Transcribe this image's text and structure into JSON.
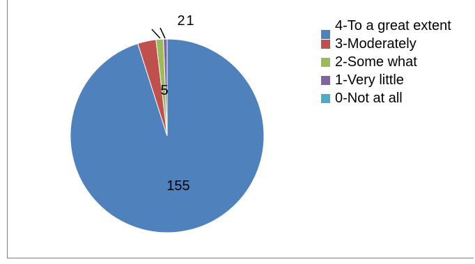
{
  "chart_data": {
    "type": "pie",
    "categories": [
      "4-To a great extent",
      "3-Moderately",
      "2-Some what",
      "1-Very little",
      "0-Not at all"
    ],
    "values": [
      155,
      5,
      2,
      1,
      0
    ],
    "data_labels": [
      "155",
      "5",
      "2",
      "1",
      ""
    ],
    "colors": [
      "#4f81bd",
      "#c0504d",
      "#9bbb59",
      "#8064a2",
      "#4bacc6"
    ],
    "legend_position": "right"
  }
}
